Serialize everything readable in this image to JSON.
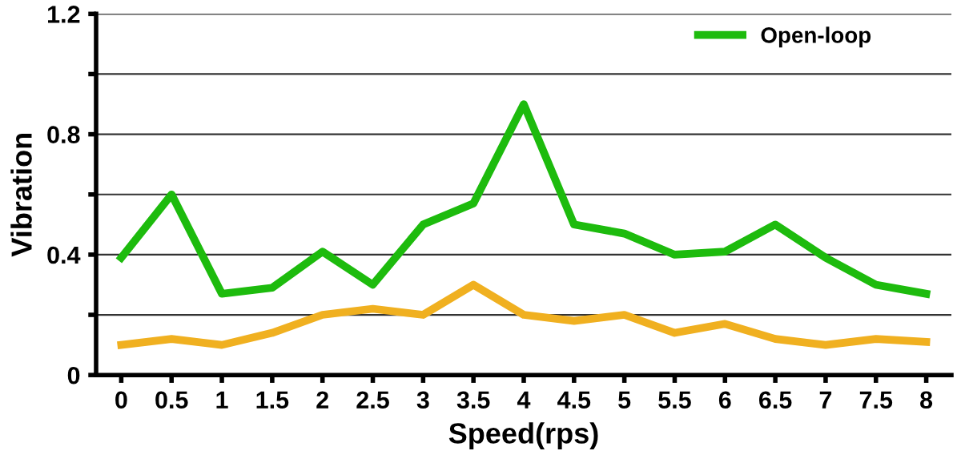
{
  "chart_data": {
    "type": "line",
    "xlabel": "Speed(rps)",
    "ylabel": "Vibration",
    "categories": [
      "0",
      "0.5",
      "1",
      "1.5",
      "2",
      "2.5",
      "3",
      "3.5",
      "4",
      "4.5",
      "5",
      "5.5",
      "6",
      "6.5",
      "7",
      "7.5",
      "8"
    ],
    "series": [
      {
        "color": "#f0b020",
        "values": [
          0.1,
          0.12,
          0.1,
          0.14,
          0.2,
          0.22,
          0.2,
          0.3,
          0.2,
          0.18,
          0.2,
          0.14,
          0.17,
          0.12,
          0.1,
          0.12,
          0.11
        ]
      },
      {
        "name": "Open-loop",
        "color": "#1dbb0d",
        "values": [
          0.39,
          0.6,
          0.27,
          0.29,
          0.41,
          0.3,
          0.5,
          0.57,
          0.9,
          0.5,
          0.47,
          0.4,
          0.41,
          0.5,
          0.39,
          0.3,
          0.27
        ]
      }
    ],
    "ylim": [
      0,
      1.2
    ],
    "yticks": [
      0,
      {
        "value": 0.2,
        "label": null
      },
      0.4,
      {
        "value": 0.6,
        "label": null
      },
      0.8,
      {
        "value": 1.0,
        "label": null
      },
      1.2
    ],
    "grid": "y",
    "legend": "top right",
    "marker": "none",
    "line_style": "solid"
  }
}
